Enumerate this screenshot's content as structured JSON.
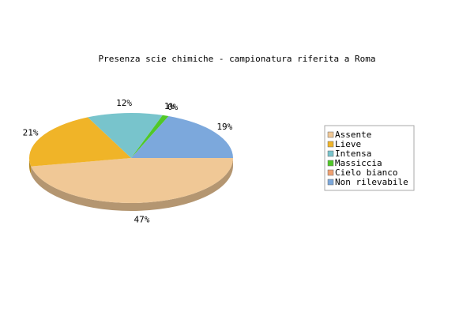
{
  "chart_data": {
    "type": "pie3d",
    "title": "Presenza scie chimiche - campionatura riferita a Roma",
    "categories": [
      "Assente",
      "Lieve",
      "Intensa",
      "Massiccia",
      "Cielo bianco",
      "Non rilevabile"
    ],
    "values": [
      47,
      21,
      12,
      1,
      0,
      19
    ],
    "value_labels": [
      "47%",
      "21%",
      "12%",
      "1%",
      "0%",
      "19%"
    ],
    "colors": [
      "#f0c896",
      "#f0b428",
      "#78c4cc",
      "#50c828",
      "#f0a070",
      "#7ca8dc"
    ],
    "legend": "right"
  }
}
